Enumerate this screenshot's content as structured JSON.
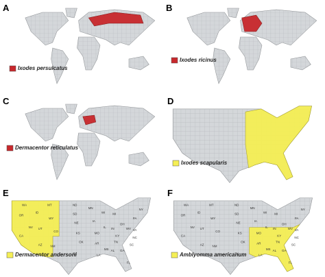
{
  "panels": [
    {
      "label": "A",
      "legend": "Ixodes persulcatus"
    },
    {
      "label": "B",
      "legend": "Ixodes ricinus"
    },
    {
      "label": "C",
      "legend": "Dermacentor reticulatus"
    },
    {
      "label": "D",
      "legend": "Ixodes scapularis"
    },
    {
      "label": "E",
      "legend": "Dermacentor andersoni",
      "states": [
        "WA",
        "OR",
        "CA",
        "NV",
        "ID",
        "MT",
        "WY",
        "UT",
        "CO",
        "AZ",
        "NM",
        "ND",
        "SD",
        "NE",
        "KS",
        "OK",
        "TX",
        "MN",
        "IA",
        "MO",
        "AR",
        "LA",
        "WI",
        "IL",
        "MI",
        "IN",
        "OH",
        "KY",
        "TN",
        "MS",
        "AL",
        "GA",
        "FL",
        "SC",
        "NC",
        "VA",
        "WV",
        "PA",
        "NY"
      ]
    },
    {
      "label": "F",
      "legend": "Amblyomma americanum",
      "states": [
        "WA",
        "OR",
        "CA",
        "NV",
        "ID",
        "MT",
        "WY",
        "UT",
        "CO",
        "AZ",
        "NM",
        "ND",
        "SD",
        "NE",
        "KS",
        "OK",
        "TX",
        "MN",
        "IA",
        "MO",
        "AR",
        "LA",
        "WI",
        "IL",
        "MI",
        "IN",
        "OH",
        "KY",
        "TN",
        "MS",
        "AL",
        "GA",
        "FL",
        "SC",
        "NC",
        "VA",
        "WV",
        "PA",
        "NY"
      ]
    }
  ]
}
